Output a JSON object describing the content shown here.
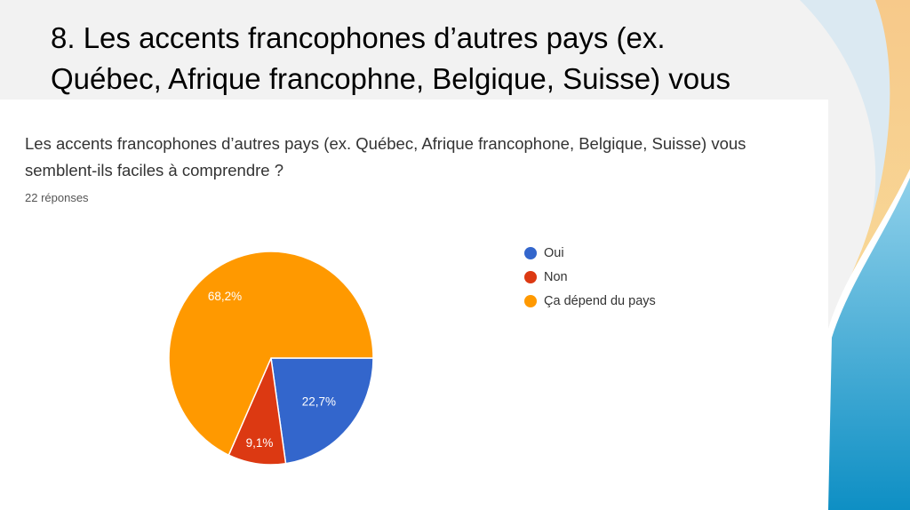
{
  "slide": {
    "title_line1": "8. Les accents francophones d’autres pays (ex.",
    "title_line2": "Québec, Afrique francophne, Belgique, Suisse) vous"
  },
  "chart_data": {
    "type": "pie",
    "title": "Les accents francophones d’autres pays (ex. Québec, Afrique francophone, Belgique, Suisse) vous semblent-ils faciles à comprendre ?",
    "subtitle": "22 réponses",
    "legend_position": "right",
    "slices": [
      {
        "label": "Oui",
        "value": 22.7,
        "display": "22,7%",
        "color": "#3366cc"
      },
      {
        "label": "Non",
        "value": 9.1,
        "display": "9,1%",
        "color": "#dc3912"
      },
      {
        "label": "Ça dépend du pays",
        "value": 68.2,
        "display": "68,2%",
        "color": "#ff9900"
      }
    ]
  }
}
